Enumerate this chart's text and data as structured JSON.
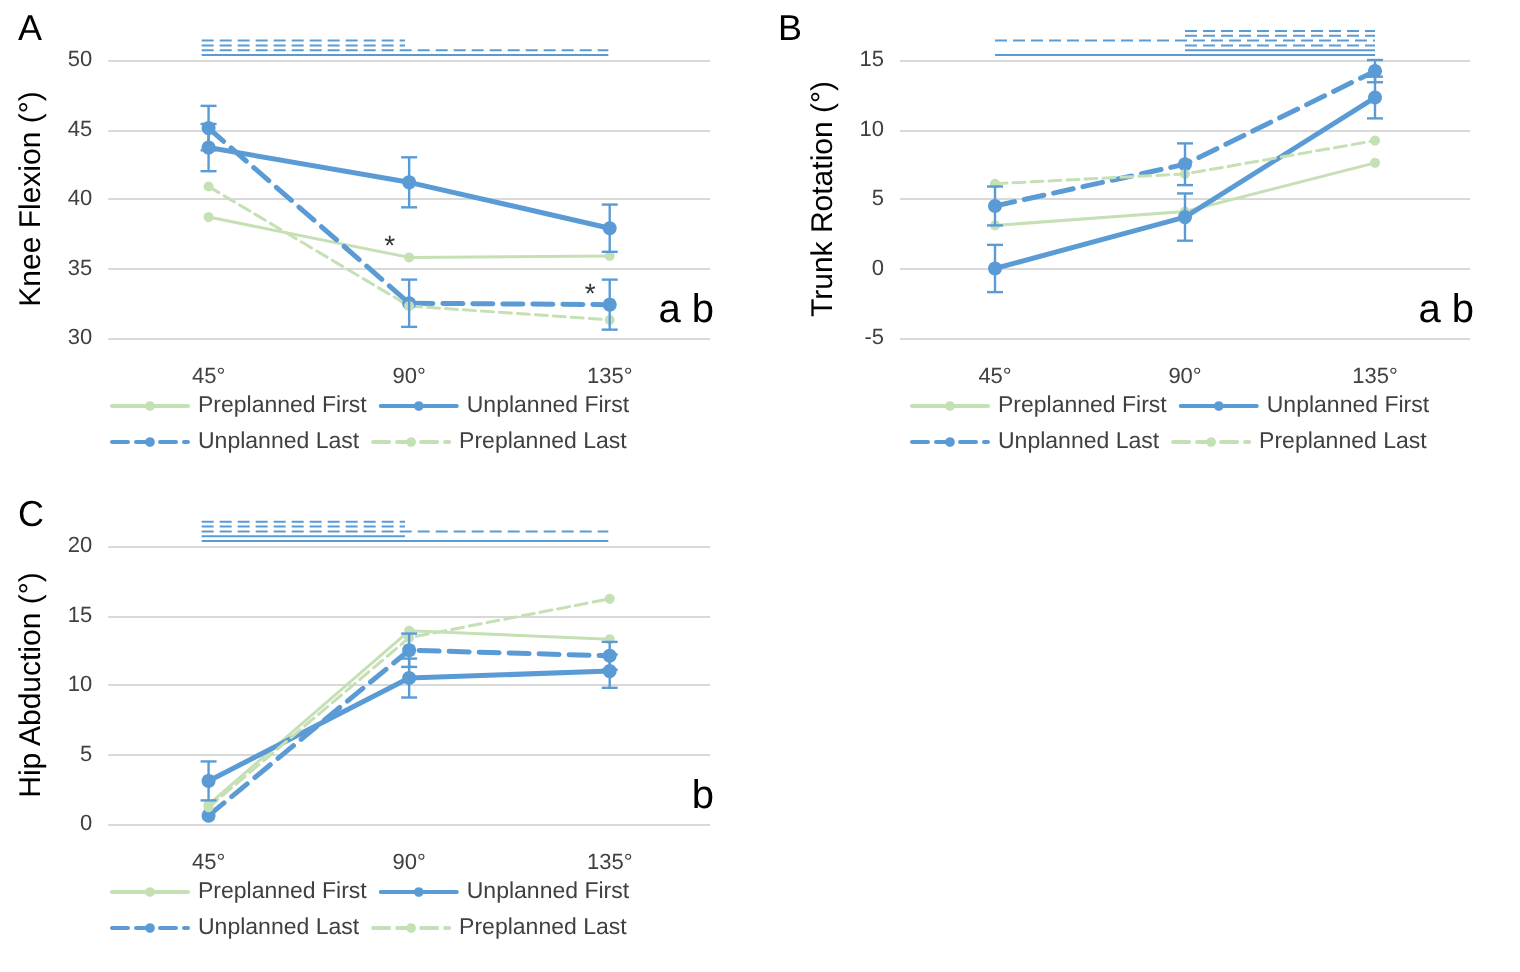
{
  "chart_data": [
    {
      "type": "line",
      "title": "A",
      "ylabel": "Knee Flexion (°)",
      "categories": [
        "45°",
        "90°",
        "135°"
      ],
      "ylim": [
        30,
        50
      ],
      "yticks": [
        30,
        35,
        40,
        45,
        50
      ],
      "grid": "y",
      "legend": "bottom",
      "marker": "circle",
      "annotations": [
        "a b",
        {
          "text": "*",
          "x": "90°",
          "y": 35.8
        },
        {
          "text": "*",
          "x": "135°",
          "y": 32.4
        }
      ],
      "series": [
        {
          "name": "Preplanned First",
          "color": "#c5e0b4",
          "line_style": "solid",
          "values": [
            38.7,
            35.8,
            35.9
          ]
        },
        {
          "name": "Unplanned First",
          "color": "#5b9bd5",
          "line_style": "solid",
          "values": [
            43.7,
            41.2,
            37.9
          ],
          "errors": [
            1.7,
            1.8,
            1.7
          ]
        },
        {
          "name": "Unplanned Last",
          "color": "#5b9bd5",
          "line_style": "dashed",
          "values": [
            45.1,
            32.5,
            32.4
          ],
          "errors": [
            1.6,
            1.7,
            1.8
          ]
        },
        {
          "name": "Preplanned Last",
          "color": "#c5e0b4",
          "line_style": "dashed",
          "values": [
            40.9,
            32.3,
            31.3
          ]
        }
      ]
    },
    {
      "type": "line",
      "title": "B",
      "ylabel": "Trunk Rotation (°)",
      "categories": [
        "45°",
        "90°",
        "135°"
      ],
      "ylim": [
        -5,
        15
      ],
      "yticks": [
        -5,
        0,
        5,
        10,
        15
      ],
      "grid": "y",
      "legend": "bottom",
      "marker": "circle",
      "annotations": [
        "a b"
      ],
      "series": [
        {
          "name": "Preplanned First",
          "color": "#c5e0b4",
          "line_style": "solid",
          "values": [
            3.1,
            4.1,
            7.6
          ]
        },
        {
          "name": "Unplanned First",
          "color": "#5b9bd5",
          "line_style": "solid",
          "values": [
            0.0,
            3.7,
            12.3
          ],
          "errors": [
            1.7,
            1.7,
            1.5
          ]
        },
        {
          "name": "Unplanned Last",
          "color": "#5b9bd5",
          "line_style": "dashed",
          "values": [
            4.5,
            7.5,
            14.2
          ],
          "errors": [
            1.4,
            1.5,
            0.8
          ]
        },
        {
          "name": "Preplanned Last",
          "color": "#c5e0b4",
          "line_style": "dashed",
          "values": [
            6.1,
            6.8,
            9.2
          ]
        }
      ]
    },
    {
      "type": "line",
      "title": "C",
      "ylabel": "Hip Abduction (°)",
      "categories": [
        "45°",
        "90°",
        "135°"
      ],
      "ylim": [
        0,
        20
      ],
      "yticks": [
        0,
        5,
        10,
        15,
        20
      ],
      "grid": "y",
      "legend": "bottom",
      "marker": "circle",
      "annotations": [
        "b"
      ],
      "series": [
        {
          "name": "Preplanned First",
          "color": "#c5e0b4",
          "line_style": "solid",
          "values": [
            1.4,
            13.9,
            13.3
          ]
        },
        {
          "name": "Unplanned First",
          "color": "#5b9bd5",
          "line_style": "solid",
          "values": [
            3.1,
            10.5,
            11.0
          ],
          "errors": [
            1.4,
            1.4,
            1.2
          ]
        },
        {
          "name": "Unplanned Last",
          "color": "#5b9bd5",
          "line_style": "dashed",
          "values": [
            0.6,
            12.5,
            12.1
          ],
          "errors": [
            null,
            1.2,
            1.0
          ]
        },
        {
          "name": "Preplanned Last",
          "color": "#c5e0b4",
          "line_style": "dashed",
          "values": [
            1.2,
            13.4,
            16.2
          ]
        }
      ]
    }
  ]
}
